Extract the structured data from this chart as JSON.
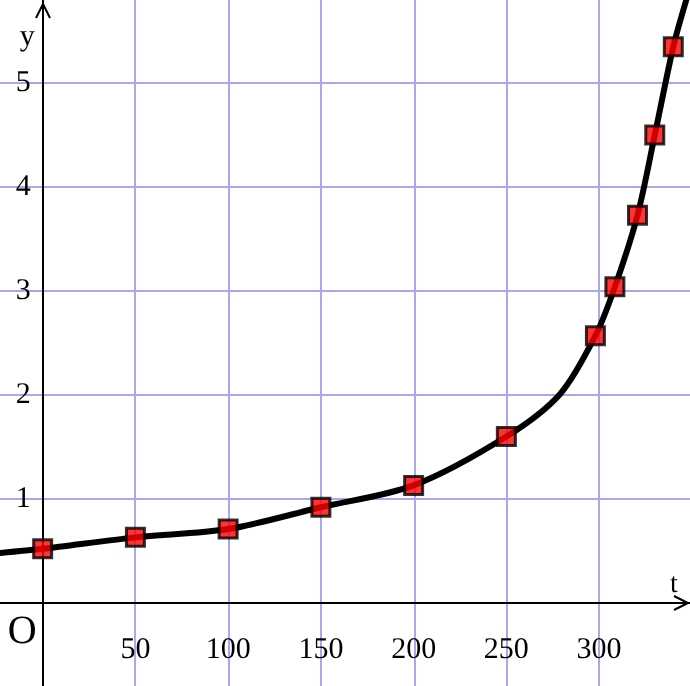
{
  "chart_data": {
    "type": "scatter",
    "xlabel": "t",
    "ylabel": "y",
    "annotations": [
      "O"
    ],
    "series": [
      {
        "type": "line",
        "color": "#000000",
        "marker": "none",
        "line_style": "solid",
        "x": [
          -23,
          0,
          50,
          100,
          150,
          200,
          250,
          279,
          298,
          308.5,
          320.7,
          330,
          340,
          347
        ],
        "values": [
          0.48,
          0.52,
          0.63,
          0.71,
          0.92,
          1.13,
          1.6,
          2.01,
          2.57,
          3.04,
          3.73,
          4.5,
          5.35,
          5.8
        ]
      },
      {
        "color": "#ff0000",
        "marker": "square",
        "x": [
          0,
          50,
          100,
          150,
          200,
          250,
          298,
          308.5,
          320.7,
          330,
          340
        ],
        "values": [
          0.52,
          0.63,
          0.71,
          0.92,
          1.13,
          1.6,
          2.57,
          3.04,
          3.73,
          4.5,
          5.35
        ]
      }
    ],
    "xlim": [
      -23,
      349
    ],
    "ylim": [
      -0.8,
      5.8
    ],
    "xticks": [
      50,
      100,
      150,
      200,
      250,
      300
    ],
    "yticks": [
      1,
      2,
      3,
      4,
      5
    ],
    "grid": true
  }
}
